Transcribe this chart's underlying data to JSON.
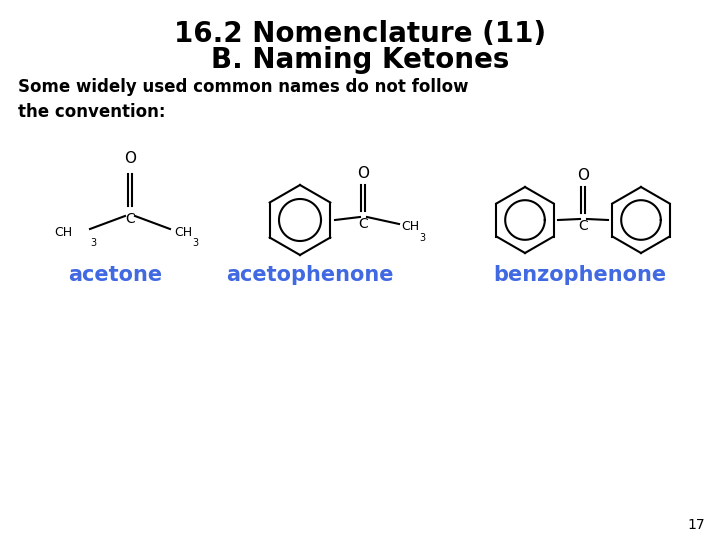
{
  "title_line1": "16.2 Nomenclature (11)",
  "title_line2": "B. Naming Ketones",
  "subtitle": "Some widely used common names do not follow\nthe convention:",
  "label1": "acetone",
  "label2": "acetophenone",
  "label3": "benzophenone",
  "label_color": "#4169E1",
  "page_number": "17",
  "bg_color": "#ffffff",
  "title_fontsize": 20,
  "subtitle_fontsize": 12,
  "label_fontsize": 15
}
